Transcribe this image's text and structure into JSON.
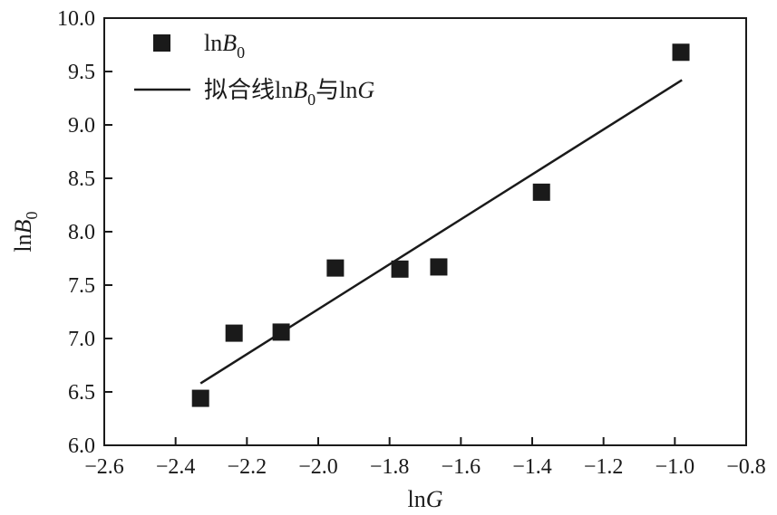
{
  "chart_data": {
    "type": "scatter",
    "title": "",
    "xlabel": "lnG",
    "ylabel": "lnB0",
    "xlim": [
      -2.6,
      -0.8
    ],
    "ylim": [
      6.0,
      10.0
    ],
    "xticks": [
      -2.6,
      -2.4,
      -2.2,
      -2.0,
      -1.8,
      -1.6,
      -1.4,
      -1.2,
      -1.0,
      -0.8
    ],
    "yticks": [
      6.0,
      6.5,
      7.0,
      7.5,
      8.0,
      8.5,
      9.0,
      9.5,
      10.0
    ],
    "xtick_labels": [
      "−2.6",
      "−2.4",
      "−2.2",
      "−2.0",
      "−1.8",
      "−1.6",
      "−1.4",
      "−1.2",
      "−1.0",
      "−0.8"
    ],
    "ytick_labels": [
      "6.0",
      "6.5",
      "7.0",
      "7.5",
      "8.0",
      "8.5",
      "9.0",
      "9.5",
      "10.0"
    ],
    "grid": false,
    "legend_position": "top-left",
    "series": [
      {
        "name": "lnB0",
        "legend_label": {
          "pre": "ln",
          "italic": "B",
          "sub": "0",
          "post": ""
        },
        "kind": "scatter",
        "marker": "square",
        "color": "#1a1a1a",
        "x": [
          -2.33,
          -2.236,
          -2.104,
          -1.952,
          -1.771,
          -1.662,
          -1.374,
          -0.983
        ],
        "y": [
          6.44,
          7.05,
          7.06,
          7.66,
          7.65,
          7.67,
          8.37,
          9.68
        ]
      },
      {
        "name": "拟合线lnB0与lnG",
        "legend_label": {
          "pre": "拟合线ln",
          "italic": "B",
          "sub": "0",
          "post": "与ln",
          "italic2": "G"
        },
        "kind": "line",
        "color": "#1a1a1a",
        "x": [
          -2.33,
          -0.98
        ],
        "y": [
          6.58,
          9.42
        ]
      }
    ]
  }
}
